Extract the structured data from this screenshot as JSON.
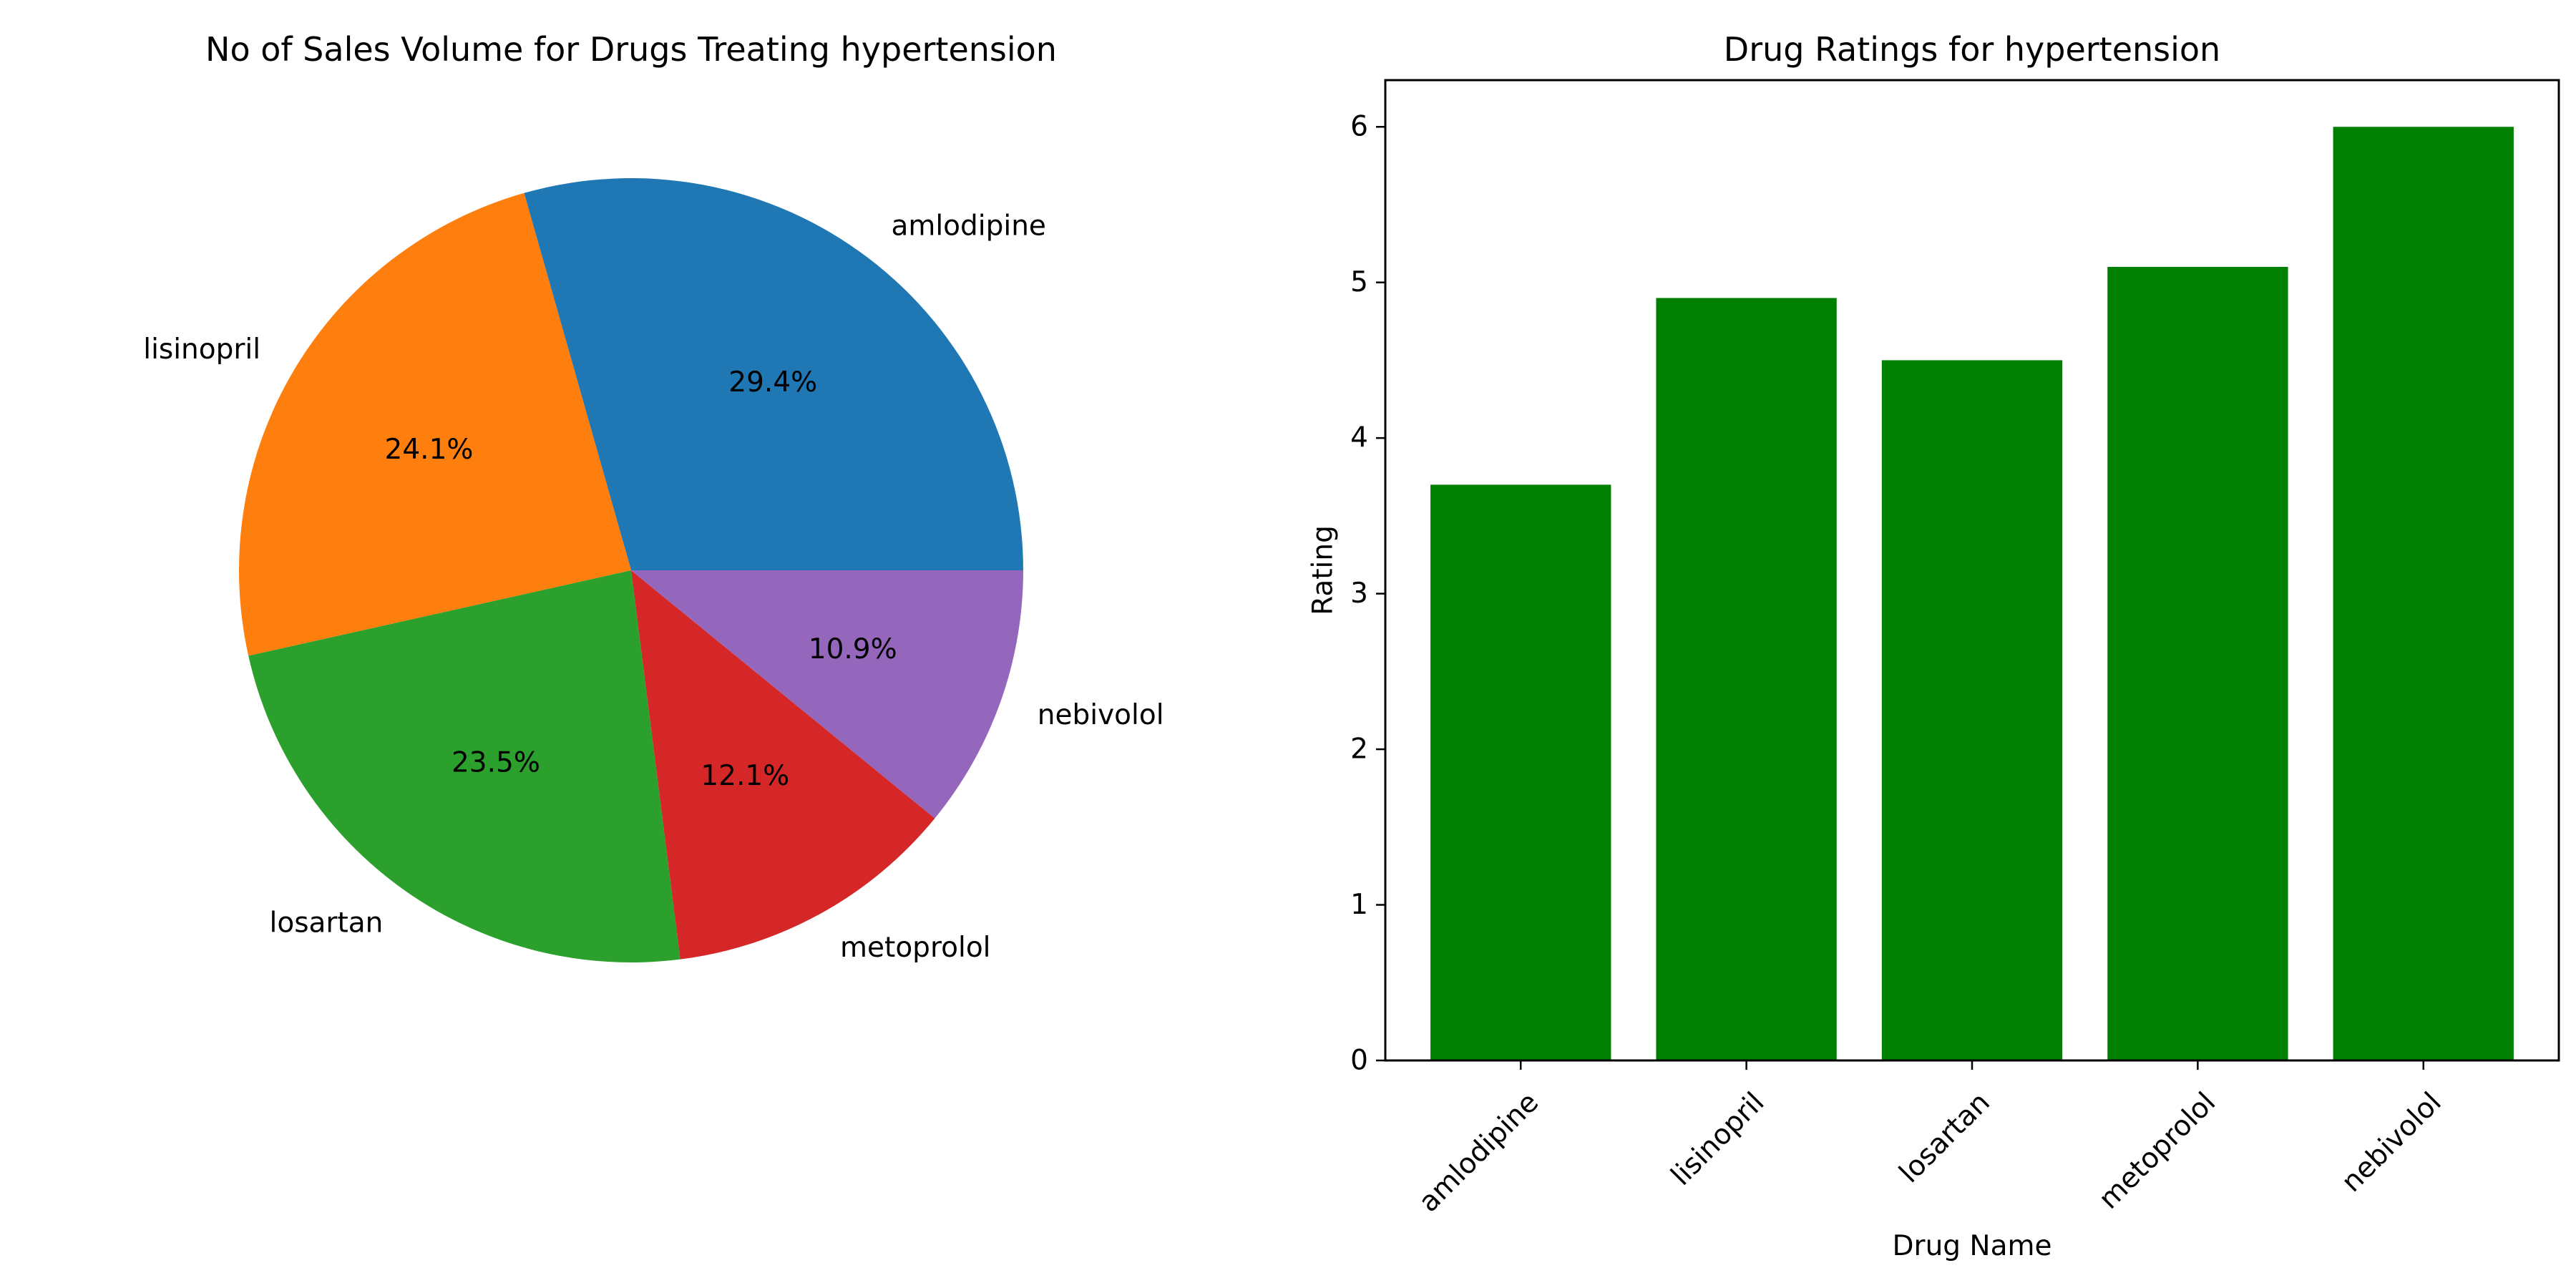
{
  "chart_data": [
    {
      "type": "pie",
      "title": "No of Sales Volume for Drugs Treating hypertension",
      "categories": [
        "amlodipine",
        "lisinopril",
        "losartan",
        "metoprolol",
        "nebivolol"
      ],
      "values": [
        29.4,
        24.1,
        23.5,
        12.1,
        10.9
      ],
      "value_labels": [
        "29.4%",
        "24.1%",
        "23.5%",
        "12.1%",
        "10.9%"
      ],
      "colors": [
        "#1f77b4",
        "#ff7f0e",
        "#2ca02c",
        "#d62728",
        "#9467bd"
      ]
    },
    {
      "type": "bar",
      "title": "Drug Ratings for hypertension",
      "categories": [
        "amlodipine",
        "lisinopril",
        "losartan",
        "metoprolol",
        "nebivolol"
      ],
      "values": [
        3.7,
        4.9,
        4.5,
        5.1,
        6.0
      ],
      "xlabel": "Drug Name",
      "ylabel": "Rating",
      "ylim": [
        0,
        6.3
      ],
      "yticks": [
        0,
        1,
        2,
        3,
        4,
        5,
        6
      ],
      "grid": false,
      "bar_color": "#008000"
    }
  ]
}
